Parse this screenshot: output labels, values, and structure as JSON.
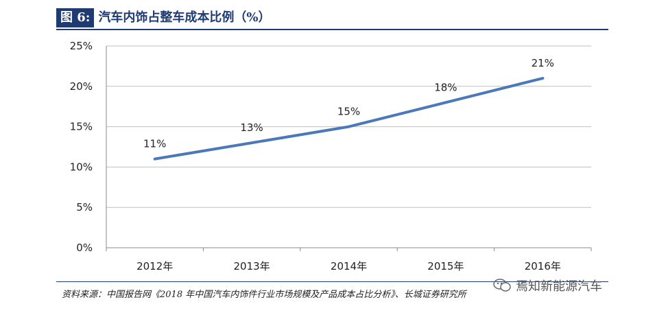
{
  "header": {
    "figure_label": "图 6:",
    "title": "汽车内饰占整车成本比例（%）"
  },
  "source": "资料来源：中国报告网《2018 年中国汽车内饰件行业市场规模及产品成本占比分析》、长城证券研究所",
  "watermark": "焉知新能源汽车",
  "colors": {
    "accent": "#1f3b73",
    "line": "#4a78b8",
    "grid": "#bfbfbf"
  },
  "chart_data": {
    "type": "line",
    "categories": [
      "2012年",
      "2013年",
      "2014年",
      "2015年",
      "2016年"
    ],
    "series": [
      {
        "values": [
          11,
          13,
          15,
          18,
          21
        ],
        "labels": [
          "11%",
          "13%",
          "15%",
          "18%",
          "21%"
        ]
      }
    ],
    "ylim": [
      0,
      25
    ],
    "yticks": [
      0,
      5,
      10,
      15,
      20,
      25
    ],
    "ytick_labels": [
      "0%",
      "5%",
      "10%",
      "15%",
      "20%",
      "25%"
    ],
    "grid": true,
    "title": "",
    "xlabel": "",
    "ylabel": ""
  }
}
